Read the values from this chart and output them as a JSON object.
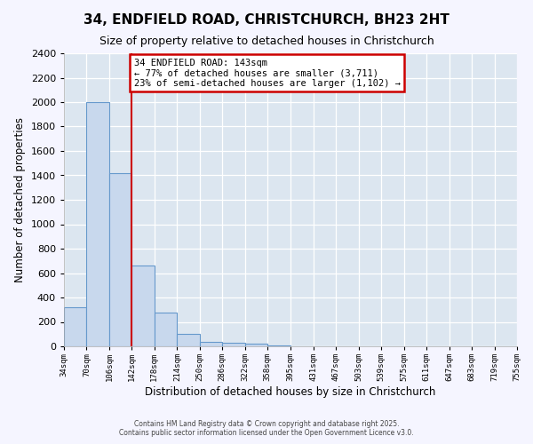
{
  "title_line1": "34, ENDFIELD ROAD, CHRISTCHURCH, BH23 2HT",
  "title_line2": "Size of property relative to detached houses in Christchurch",
  "xlabel": "Distribution of detached houses by size in Christchurch",
  "ylabel": "Number of detached properties",
  "bin_edges": [
    34,
    70,
    106,
    142,
    178,
    214,
    250,
    286,
    322,
    358,
    395,
    431,
    467,
    503,
    539,
    575,
    611,
    647,
    683,
    719,
    755
  ],
  "bar_heights": [
    320,
    2000,
    1420,
    660,
    280,
    105,
    40,
    30,
    20,
    10,
    0,
    0,
    0,
    0,
    0,
    0,
    0,
    0,
    0,
    0
  ],
  "bar_color": "#c8d8ed",
  "bar_edge_color": "#6699cc",
  "property_line_x": 142,
  "annotation_title": "34 ENDFIELD ROAD: 143sqm",
  "annotation_line2": "← 77% of detached houses are smaller (3,711)",
  "annotation_line3": "23% of semi-detached houses are larger (1,102) →",
  "annotation_box_color": "#ffffff",
  "annotation_box_edge": "#cc0000",
  "vline_color": "#cc0000",
  "ylim": [
    0,
    2400
  ],
  "plot_bg_color": "#dce6f0",
  "fig_bg_color": "#f5f5ff",
  "footer_line1": "Contains HM Land Registry data © Crown copyright and database right 2025.",
  "footer_line2": "Contains public sector information licensed under the Open Government Licence v3.0.",
  "tick_labels": [
    "34sqm",
    "70sqm",
    "106sqm",
    "142sqm",
    "178sqm",
    "214sqm",
    "250sqm",
    "286sqm",
    "322sqm",
    "358sqm",
    "395sqm",
    "431sqm",
    "467sqm",
    "503sqm",
    "539sqm",
    "575sqm",
    "611sqm",
    "647sqm",
    "683sqm",
    "719sqm",
    "755sqm"
  ],
  "yticks": [
    0,
    200,
    400,
    600,
    800,
    1000,
    1200,
    1400,
    1600,
    1800,
    2000,
    2200,
    2400
  ]
}
